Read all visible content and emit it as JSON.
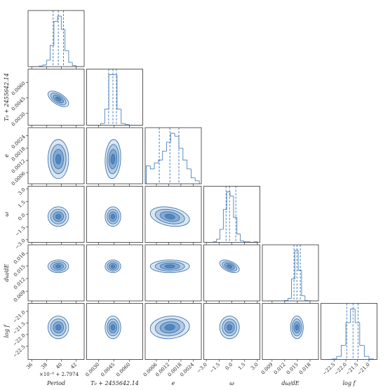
{
  "chart_data": {
    "type": "corner",
    "color": "#3f74ad",
    "levels": [
      0.5,
      1,
      1.5,
      2
    ],
    "offset_text": "×10⁻⁶ + 2.7974",
    "parameters": [
      {
        "label": "Period",
        "lim": [
          35.5,
          43.1
        ],
        "ticks": [
          36,
          38,
          40,
          42
        ],
        "quantiles": [
          38.9,
          39.6,
          40.3
        ],
        "bins": [
          36,
          36.5,
          37,
          37.5,
          38,
          38.5,
          39,
          39.5,
          40,
          40.5,
          41,
          41.5,
          42,
          42.5,
          43
        ],
        "counts": [
          0,
          0,
          1,
          3,
          12,
          40,
          85,
          95,
          70,
          30,
          8,
          2,
          0,
          0
        ]
      },
      {
        "label": "T₀ + 2455642.14",
        "lim": [
          0.00184,
          0.0073
        ],
        "ticks": [
          {
            "value": 0.003,
            "label": "0.0030"
          },
          0.0045,
          {
            "value": 0.006,
            "label": "0.0060"
          }
        ],
        "quantiles": [
          0.00398,
          0.0044,
          0.00474
        ],
        "bins": [
          0.002,
          0.0024,
          0.0028,
          0.0032,
          0.0036,
          0.004,
          0.0044,
          0.0048,
          0.0052,
          0.0056,
          0.006,
          0.0064,
          0.0068,
          0.0072
        ],
        "counts": [
          0,
          0,
          0,
          3,
          28,
          88,
          88,
          28,
          3,
          1,
          0,
          0,
          0
        ],
        "rho": [
          -0.6
        ]
      },
      {
        "label": "e",
        "lim": [
          5e-05,
          0.0028
        ],
        "ticks": [
          0.0006,
          0.0012,
          0.0018,
          0.0024
        ],
        "quantiles": [
          0.00074,
          0.00126,
          0.0017
        ],
        "bins": [
          0.0001,
          0.0003,
          0.0005,
          0.0007,
          0.0009,
          0.0011,
          0.0013,
          0.0015,
          0.0017,
          0.0019,
          0.0021,
          0.0023,
          0.0025,
          0.0027
        ],
        "counts": [
          30,
          25,
          35,
          40,
          55,
          70,
          85,
          80,
          60,
          40,
          25,
          10,
          5
        ],
        "rho": [
          0,
          0.1
        ]
      },
      {
        "label": "ω",
        "lim": [
          -3.3,
          3.3
        ],
        "ticks": [
          {
            "value": -3,
            "label": "−3.0"
          },
          {
            "value": -1.5,
            "label": "−1.5"
          },
          {
            "value": 0,
            "label": "0.0"
          },
          {
            "value": 1.5,
            "label": "1.5"
          },
          {
            "value": 3,
            "label": "3.0"
          }
        ],
        "quantiles": [
          -0.68,
          -0.27,
          0.47
        ],
        "bins": [
          -3,
          -2.6,
          -2.2,
          -1.8,
          -1.4,
          -1,
          -0.6,
          -0.2,
          0.2,
          0.6,
          1,
          1.4,
          1.8,
          2.2,
          2.6,
          3
        ],
        "counts": [
          0,
          0,
          1,
          6,
          25,
          63,
          97,
          89,
          48,
          16,
          3,
          1,
          1,
          0,
          1
        ],
        "rho": [
          0,
          0,
          -0.3
        ]
      },
      {
        "label": "dω/dE",
        "lim": [
          0.0067,
          0.02
        ],
        "ticks": [
          0.009,
          0.012,
          0.015,
          0.018
        ],
        "quantiles": [
          0.0142,
          0.0149,
          0.0157
        ],
        "bins": [
          0.008,
          0.0088,
          0.0096,
          0.0104,
          0.0112,
          0.012,
          0.0128,
          0.0136,
          0.0144,
          0.0152,
          0.016,
          0.0168,
          0.0176,
          0.0184,
          0.0192,
          0.02
        ],
        "counts": [
          0,
          0,
          0,
          0,
          0,
          1,
          5,
          43,
          99,
          60,
          10,
          1,
          0,
          0,
          0
        ],
        "rho": [
          0,
          0,
          0,
          -0.5
        ]
      },
      {
        "label": "log f",
        "lim": [
          -23.08,
          -20.65
        ],
        "ticks": [
          {
            "value": -22.5,
            "label": "−22.5"
          },
          {
            "value": -22,
            "label": "−22.0"
          },
          {
            "value": -21.5,
            "label": "−21.5"
          },
          {
            "value": -21,
            "label": "−21.0"
          }
        ],
        "quantiles": [
          -21.96,
          -21.69,
          -21.47
        ],
        "bins": [
          -22.8,
          -22.6,
          -22.4,
          -22.2,
          -22,
          -21.8,
          -21.6,
          -21.4,
          -21.2,
          -21,
          -20.8
        ],
        "counts": [
          0,
          1,
          6,
          28,
          73,
          100,
          73,
          28,
          6,
          1
        ],
        "rho": [
          0,
          0,
          0.1,
          0,
          0
        ]
      }
    ]
  }
}
